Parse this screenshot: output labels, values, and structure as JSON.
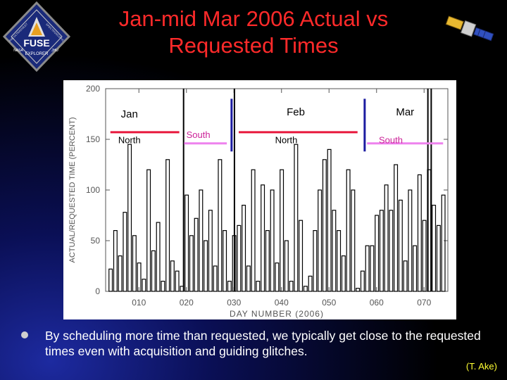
{
  "slide": {
    "title_line1": "Jan-mid Mar 2006 Actual vs",
    "title_line2": "Requested Times",
    "logo": {
      "center_text": "FUSE",
      "bottom_text": "EXPLORER",
      "left_small": "NASA",
      "right_small": "JHU",
      "ring_left": "FAR ULTRAVIOLET",
      "ring_right": "SPECTROSCOPIC"
    },
    "bullet_text": "By scheduling more time than requested, we typically get close to the requested times even with acquisition and guiding glitches.",
    "credit": "(T. Ake)"
  },
  "colors": {
    "title": "#ff2a2a",
    "credit": "#ffff33",
    "north_line": "#e8173c",
    "south_line": "#ee82ee",
    "month_divider": "#1b1ba0"
  },
  "chart_data": {
    "type": "bar",
    "ylabel": "ACTUAL/REQUESTED TIME (PERCENT)",
    "xlabel": "DAY NUMBER (2006)",
    "ylim": [
      0,
      200
    ],
    "xlim": [
      3,
      75
    ],
    "yticks": [
      {
        "v": 0,
        "label": "0"
      },
      {
        "v": 50,
        "label": "50"
      },
      {
        "v": 100,
        "label": "100"
      },
      {
        "v": 150,
        "label": "150"
      },
      {
        "v": 200,
        "label": "200"
      }
    ],
    "xticks": [
      {
        "v": 10,
        "label": "010"
      },
      {
        "v": 20,
        "label": "020"
      },
      {
        "v": 30,
        "label": "030"
      },
      {
        "v": 40,
        "label": "040"
      },
      {
        "v": 50,
        "label": "050"
      },
      {
        "v": 60,
        "label": "060"
      },
      {
        "v": 70,
        "label": "070"
      }
    ],
    "month_labels": [
      {
        "label": "Jan",
        "day": 8,
        "y": 175
      },
      {
        "label": "Feb",
        "day": 43,
        "y": 177
      },
      {
        "label": "Mar",
        "day": 66,
        "y": 177
      }
    ],
    "month_dividers": [
      29.5,
      57.5
    ],
    "periods": [
      {
        "label": "North",
        "kind": "north",
        "start": 4,
        "end": 18.5,
        "label_day": 8,
        "label_y": 149
      },
      {
        "label": "South",
        "kind": "south",
        "start": 19.5,
        "end": 28.5,
        "label_day": 22.5,
        "label_y": 154
      },
      {
        "label": "North",
        "kind": "north",
        "start": 31,
        "end": 56,
        "label_day": 41,
        "label_y": 149
      },
      {
        "label": "South",
        "kind": "south",
        "start": 58,
        "end": 74,
        "label_day": 63,
        "label_y": 149
      }
    ],
    "spikes": [
      {
        "x": 19.4,
        "y": 200
      },
      {
        "x": 30.1,
        "y": 200
      },
      {
        "x": 71.5,
        "y": 200
      },
      {
        "x": 70.8,
        "y": 200
      }
    ],
    "series": [
      {
        "x": [
          4,
          5,
          6,
          7,
          8,
          9,
          10,
          11,
          12,
          13,
          14,
          15,
          16,
          17,
          18,
          19,
          20,
          21,
          22,
          23,
          24,
          25,
          26,
          27,
          28,
          29,
          30,
          31,
          32,
          33,
          34,
          35,
          36,
          37,
          38,
          39,
          40,
          41,
          42,
          43,
          44,
          45,
          46,
          47,
          48,
          49,
          50,
          51,
          52,
          53,
          54,
          55,
          56,
          57,
          58,
          59,
          60,
          61,
          62,
          63,
          64,
          65,
          66,
          67,
          68,
          69,
          70,
          71,
          72,
          73,
          74
        ],
        "values": [
          22,
          60,
          35,
          78,
          145,
          55,
          28,
          12,
          120,
          40,
          68,
          10,
          130,
          30,
          20,
          5,
          95,
          55,
          72,
          100,
          50,
          80,
          25,
          130,
          60,
          10,
          55,
          65,
          85,
          25,
          120,
          10,
          105,
          60,
          100,
          28,
          120,
          50,
          10,
          145,
          70,
          5,
          15,
          60,
          100,
          130,
          140,
          80,
          60,
          35,
          120,
          100,
          3,
          20,
          45,
          45,
          75,
          80,
          105,
          80,
          125,
          90,
          30,
          100,
          45,
          115,
          70,
          120,
          85,
          65,
          95
        ]
      }
    ]
  }
}
